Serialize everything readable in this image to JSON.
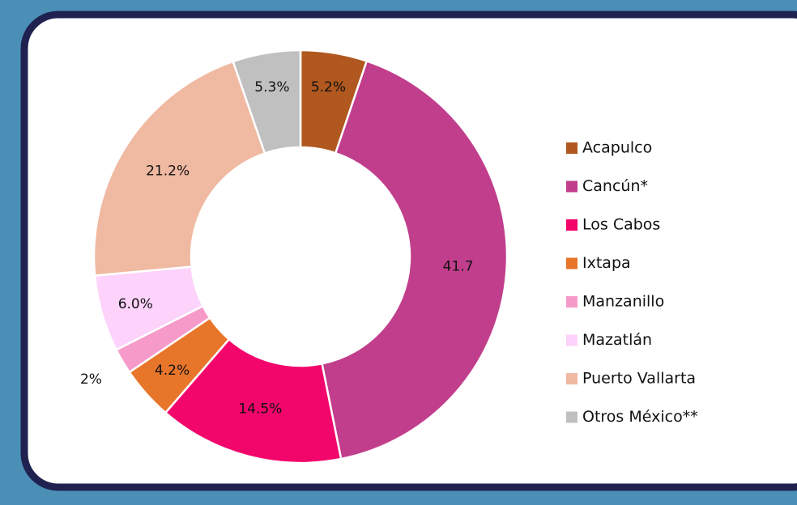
{
  "chart_data": {
    "type": "donut",
    "categories": [
      "Acapulco",
      "Cancún*",
      "Los Cabos",
      "Ixtapa",
      "Manzanillo",
      "Mazatlán",
      "Puerto Vallarta",
      "Otros México**"
    ],
    "values": [
      5.2,
      41.7,
      14.5,
      4.2,
      2,
      6.0,
      21.2,
      5.3
    ],
    "value_labels": [
      "5.2%",
      "41.7",
      "14.5%",
      "4.2%",
      "2%",
      "6.0%",
      "21.2%",
      "5.3%"
    ],
    "colors": [
      "#b0581f",
      "#c13e8c",
      "#f2066b",
      "#e8762a",
      "#f69ac9",
      "#fdd3fb",
      "#f0b9a1",
      "#c0c0c0"
    ]
  }
}
